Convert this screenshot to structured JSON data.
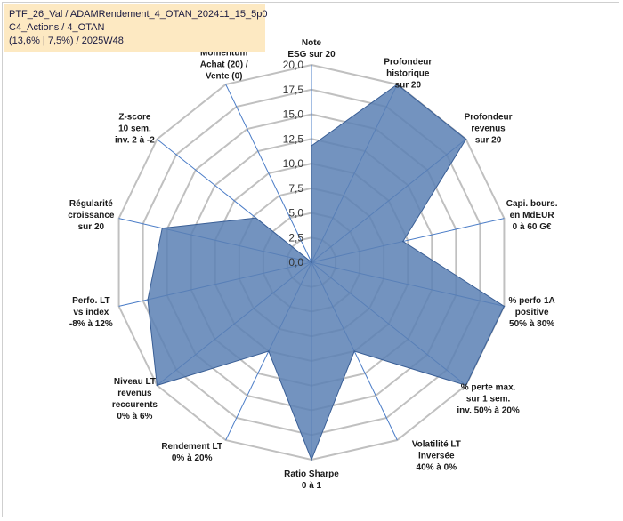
{
  "info": {
    "line1": "PTF_26_Val / ADAMRendement_4_OTAN_202411_15_5p0",
    "line2": "C4_Actions / 4_OTAN",
    "line3": "(13,6% | 7,5%) / 2025W48"
  },
  "colors": {
    "fill": "#5b80b4",
    "stroke": "#3a5f96",
    "grid": "#c0c0c0",
    "spoke": "#4a7cc7",
    "header_bg": "#fde9c2"
  },
  "chart_data": {
    "type": "radar",
    "rlim": [
      0,
      20
    ],
    "ticks": [
      {
        "v": 0,
        "label": "0,0"
      },
      {
        "v": 2.5,
        "label": "2,5"
      },
      {
        "v": 5,
        "label": "5,0"
      },
      {
        "v": 7.5,
        "label": "7,5"
      },
      {
        "v": 10,
        "label": "10,0"
      },
      {
        "v": 12.5,
        "label": "12,5"
      },
      {
        "v": 15,
        "label": "15,0"
      },
      {
        "v": 17.5,
        "label": "17,5"
      },
      {
        "v": 20,
        "label": "20,0"
      }
    ],
    "axes": [
      {
        "label": [
          "Note",
          "ESG sur 20"
        ],
        "value": 11.8
      },
      {
        "label": [
          "Profondeur",
          "historique",
          "sur 20"
        ],
        "value": 20
      },
      {
        "label": [
          "Profondeur",
          "revenus",
          "sur 20"
        ],
        "value": 20
      },
      {
        "label": [
          "Capi. bours.",
          "en MdEUR",
          "0 à 60 G€"
        ],
        "value": 9.5
      },
      {
        "label": [
          "% perfo 1A",
          "positive",
          "50% à 80%"
        ],
        "value": 20
      },
      {
        "label": [
          "% perte max.",
          "sur 1 sem.",
          "inv. 50% à 20%"
        ],
        "value": 20
      },
      {
        "label": [
          "Volatilité LT",
          "inversée",
          "40% à 0%"
        ],
        "value": 10
      },
      {
        "label": [
          "Ratio Sharpe",
          "0 à 1"
        ],
        "value": 20
      },
      {
        "label": [
          "Rendement LT",
          "0% à 20%"
        ],
        "value": 10
      },
      {
        "label": [
          "Niveau LT",
          "revenus",
          "reccurents",
          "0% à 6%"
        ],
        "value": 20
      },
      {
        "label": [
          "Perfo. LT",
          "vs index",
          "-8% à 12%"
        ],
        "value": 17
      },
      {
        "label": [
          "Régularité",
          "croissance",
          "sur 20"
        ],
        "value": 15.5
      },
      {
        "label": [
          "Z-score",
          "10 sem.",
          "inv. 2 à -2"
        ],
        "value": 7.2
      },
      {
        "label": [
          "Momentum",
          "Achat (20) /",
          "Vente (0)"
        ],
        "value": 0
      }
    ]
  }
}
